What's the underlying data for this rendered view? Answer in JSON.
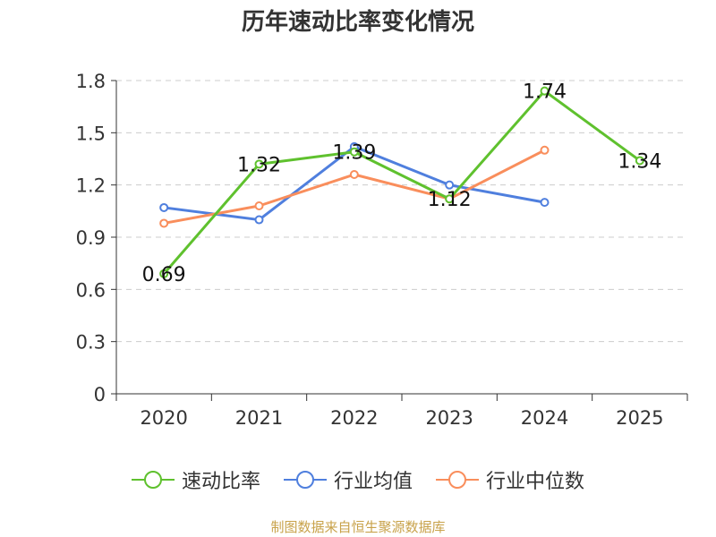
{
  "chart_data": {
    "type": "line",
    "title": "历年速动比率变化情况",
    "categories": [
      "2020",
      "2021",
      "2022",
      "2023",
      "2024",
      "2025"
    ],
    "ylim": [
      0,
      1.8
    ],
    "yticks": [
      "0",
      "0.3",
      "0.6",
      "0.9",
      "1.2",
      "1.5",
      "1.8"
    ],
    "grid": true,
    "legend_position": "bottom",
    "series": [
      {
        "name": "速动比率",
        "color": "#5fc12e",
        "values": [
          0.69,
          1.32,
          1.39,
          1.12,
          1.74,
          1.34
        ],
        "labels": [
          "0.69",
          "1.32",
          "1.39",
          "1.12",
          "1.74",
          "1.34"
        ]
      },
      {
        "name": "行业均值",
        "color": "#4f7fde",
        "values": [
          1.07,
          1.0,
          1.42,
          1.2,
          1.1,
          null
        ]
      },
      {
        "name": "行业中位数",
        "color": "#f98e5c",
        "values": [
          0.98,
          1.08,
          1.26,
          1.12,
          1.4,
          null
        ]
      }
    ]
  },
  "source_note": "制图数据来自恒生聚源数据库"
}
